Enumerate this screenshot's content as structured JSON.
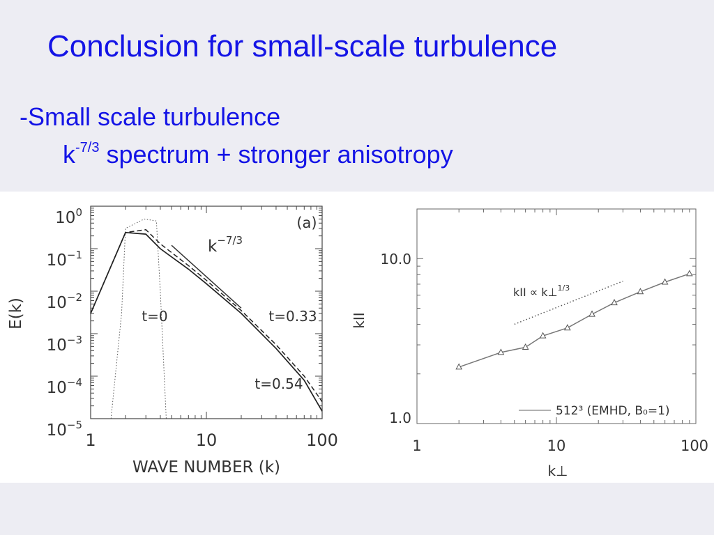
{
  "slide": {
    "title": "Conclusion for small-scale turbulence",
    "bullet1": "-Small scale turbulence",
    "bullet2_base": "k",
    "bullet2_exp": "-7/3",
    "bullet2_rest": " spectrum + stronger anisotropy",
    "text_color": "#1414e6"
  },
  "chart_data": [
    {
      "type": "line",
      "panel_label": "(a)",
      "xlabel": "WAVE NUMBER (k)",
      "ylabel": "E(k)",
      "xscale": "log",
      "yscale": "log",
      "xlim": [
        1,
        100
      ],
      "ylim": [
        1e-05,
        1
      ],
      "x_tick_labels": [
        "1",
        "10",
        "100"
      ],
      "y_tick_bases": [
        "10",
        "10",
        "10",
        "10",
        "10",
        "10"
      ],
      "y_tick_exponents": [
        "0",
        "−1",
        "−2",
        "−3",
        "−4",
        "−5"
      ],
      "series": [
        {
          "name": "t=0",
          "style": "dotted",
          "x": [
            1.5,
            1.85,
            2.0,
            2.9,
            3.7,
            4.0,
            4.5
          ],
          "y": [
            1e-05,
            0.003,
            0.3,
            0.5,
            0.45,
            0.01,
            1e-05
          ]
        },
        {
          "name": "t=0.33",
          "style": "dashed",
          "x": [
            1,
            2,
            3,
            4,
            7,
            10,
            20,
            40,
            70,
            100
          ],
          "y": [
            0.003,
            0.24,
            0.28,
            0.13,
            0.04,
            0.018,
            0.0035,
            0.00055,
            0.0001,
            2.5e-05
          ]
        },
        {
          "name": "t=0.54",
          "style": "solid",
          "x": [
            1,
            2,
            3,
            4,
            7,
            10,
            20,
            40,
            70,
            100
          ],
          "y": [
            0.003,
            0.24,
            0.22,
            0.1,
            0.033,
            0.015,
            0.003,
            0.00045,
            8e-05,
            1.5e-05
          ]
        }
      ],
      "reference_line": {
        "label_base": "k",
        "label_exp": "−7/3",
        "x": [
          5,
          20
        ],
        "y": [
          0.12,
          0.004
        ]
      }
    },
    {
      "type": "line",
      "xlabel": "k⊥",
      "ylabel": "kII",
      "xscale": "log",
      "yscale": "log",
      "xlim": [
        1,
        100
      ],
      "ylim": [
        1,
        20
      ],
      "x_tick_labels": [
        "1",
        "10",
        "100"
      ],
      "y_tick_labels": [
        "10.0",
        "1.0"
      ],
      "series": [
        {
          "name": "512³ (EMHD, B₀=1)",
          "marker": "triangle",
          "color": "#777777",
          "x": [
            2,
            4,
            6,
            8,
            12,
            18,
            26,
            40,
            60,
            90
          ],
          "y": [
            2.2,
            2.7,
            2.9,
            3.4,
            3.8,
            4.6,
            5.4,
            6.3,
            7.2,
            8.1
          ]
        }
      ],
      "reference_line": {
        "label": "kII ∝ k⊥^1/3",
        "label_main": "kII ∝ k⊥",
        "label_exp": "1/3",
        "style": "dotted",
        "x": [
          5,
          30
        ],
        "y": [
          4.0,
          7.3
        ]
      },
      "legend_label": "512³ (EMHD, B₀=1)",
      "legend_position": "bottom-right"
    }
  ]
}
